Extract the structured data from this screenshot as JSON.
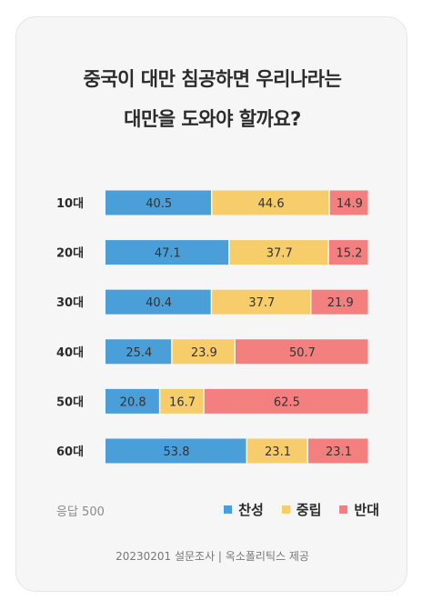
{
  "title_line1": "중국이 대만 침공하면 우리나라는",
  "title_line2": "대만을 도와야 할까요?",
  "respondents": "응답 500",
  "source": "20230201 설문조사 | 옥소폴리틱스 제공",
  "colors": {
    "agree": "#4a9fd8",
    "neutral": "#f7cd6b",
    "oppose": "#f47f7f"
  },
  "chart_data": {
    "type": "bar",
    "orientation": "horizontal",
    "stacked": true,
    "categories": [
      "10대",
      "20대",
      "30대",
      "40대",
      "50대",
      "60대"
    ],
    "series": [
      {
        "name": "찬성",
        "values": [
          40.5,
          47.1,
          40.4,
          25.4,
          20.8,
          53.8
        ]
      },
      {
        "name": "중립",
        "values": [
          44.6,
          37.7,
          37.7,
          23.9,
          16.7,
          23.1
        ]
      },
      {
        "name": "반대",
        "values": [
          14.9,
          15.2,
          21.9,
          50.7,
          62.5,
          23.1
        ]
      }
    ],
    "legend_position": "bottom-right",
    "grid": false
  }
}
